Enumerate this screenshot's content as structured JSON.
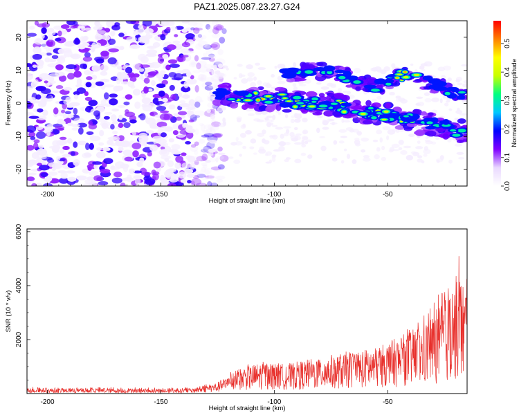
{
  "title": "PAZ1.2025.087.23.27.G24",
  "chart_data": [
    {
      "type": "heatmap",
      "xlabel": "Height of straight line (km)",
      "ylabel": "Frequency (Hz)",
      "xlim": [
        -209,
        -15
      ],
      "ylim": [
        -25,
        25
      ],
      "xticks": [
        -200,
        -150,
        -100,
        -50
      ],
      "yticks": [
        -20,
        -10,
        0,
        10,
        20
      ],
      "colorbar": {
        "label": "Normalized spectral amplitude",
        "range": [
          0,
          0.58
        ],
        "ticks": [
          "0.0",
          "0.1",
          "0.2",
          "0.3",
          "0.4",
          "0.5"
        ],
        "colormap": [
          "#ffffff",
          "#ead9ff",
          "#8000ff",
          "#0000ff",
          "#00c8ff",
          "#00ff80",
          "#c8ff00",
          "#ffff00",
          "#ff8000",
          "#ff0000"
        ]
      },
      "noise_region_x": [
        -209,
        -130
      ],
      "signal_track": {
        "x": [
          -125,
          -115,
          -105,
          -95,
          -85,
          -75,
          -65,
          -55,
          -45,
          -35,
          -25,
          -15
        ],
        "frequency": [
          3,
          2,
          1.5,
          1,
          0,
          0,
          -2,
          -3,
          -4,
          -6,
          -7,
          -9
        ],
        "peak_amplitude": [
          0.32,
          0.5,
          0.55,
          0.45,
          0.52,
          0.4,
          0.45,
          0.5,
          0.42,
          0.38,
          0.35,
          0.3
        ]
      },
      "upper_branch": {
        "x": [
          -95,
          -75,
          -65,
          -55,
          -42,
          -30,
          -20,
          -15
        ],
        "frequency": [
          9,
          10,
          7,
          5,
          9,
          6,
          3,
          2
        ],
        "peak_amplitude": [
          0.35,
          0.3,
          0.4,
          0.35,
          0.55,
          0.3,
          0.35,
          0.3
        ]
      }
    },
    {
      "type": "line",
      "xlabel": "Height of straight line (km)",
      "ylabel": "SNR (10 * v/v)",
      "xlim": [
        -209,
        -15
      ],
      "ylim": [
        0,
        6100
      ],
      "xticks": [
        -200,
        -150,
        -100,
        -50
      ],
      "yticks": [
        2000,
        4000,
        6000
      ],
      "color": "#e8302c",
      "series": [
        {
          "x": [
            -209,
            -190,
            -170,
            -150,
            -135,
            -125,
            -115,
            -105,
            -95,
            -85,
            -75,
            -65,
            -55,
            -45,
            -35,
            -28,
            -22,
            -18,
            -16
          ],
          "mean": [
            120,
            110,
            110,
            100,
            110,
            250,
            550,
            700,
            650,
            750,
            850,
            950,
            1000,
            1250,
            1500,
            1900,
            2200,
            2600,
            2400
          ],
          "peak": [
            250,
            230,
            240,
            220,
            240,
            500,
            1050,
            1150,
            1050,
            1200,
            1300,
            1500,
            1650,
            2200,
            2800,
            3600,
            4800,
            6000,
            5200
          ]
        }
      ]
    }
  ]
}
